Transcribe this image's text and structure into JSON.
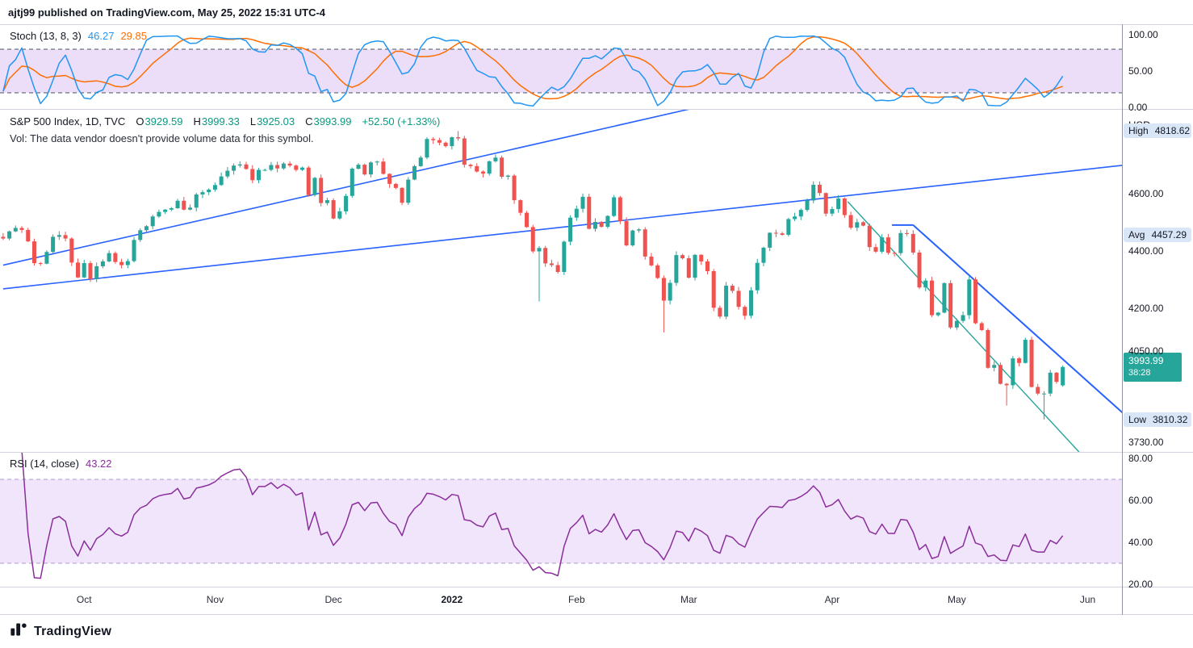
{
  "header": {
    "published_line": "ajtj99 published on TradingView.com, May 25, 2022 15:31 UTC-4"
  },
  "stoch_pane": {
    "title": "Stoch (13, 8, 3)",
    "k_value": "46.27",
    "d_value": "29.85",
    "k_color": "#2196f3",
    "d_color": "#ff6d00",
    "band": {
      "upper": 80,
      "lower": 20
    },
    "ticks": [
      {
        "value": 100,
        "label": "100.00"
      },
      {
        "value": 50,
        "label": "50.00"
      },
      {
        "value": 0,
        "label": "0.00"
      }
    ]
  },
  "main_pane": {
    "title": "S&P 500 Index, 1D, TVC",
    "ohlc": {
      "o_label": "O",
      "o": "3929.59",
      "h_label": "H",
      "h": "3999.33",
      "l_label": "L",
      "l": "3925.03",
      "c_label": "C",
      "c": "3993.99",
      "change": "+52.50 (+1.33%)",
      "color": "#089981"
    },
    "vol_note": "Vol: The data vendor doesn't provide volume data for this symbol.",
    "currency": "USD",
    "ticks": [
      {
        "price": 4600,
        "label": "4600.00"
      },
      {
        "price": 4400,
        "label": "4400.00"
      },
      {
        "price": 4200,
        "label": "4200.00"
      },
      {
        "price": 4050,
        "label": "4050.00"
      },
      {
        "price": 3730,
        "label": "3730.00"
      }
    ],
    "stat_badges": [
      {
        "name": "high",
        "label": "High",
        "value": "4818.62",
        "price": 4818.62
      },
      {
        "name": "avg",
        "label": "Avg",
        "value": "4457.29",
        "price": 4457.29
      },
      {
        "name": "low",
        "label": "Low",
        "value": "3810.32",
        "price": 3810.32
      }
    ],
    "price_badge": {
      "value": "3993.99",
      "countdown": "38:28",
      "price": 3993.99,
      "color": "#26a69a"
    }
  },
  "rsi_pane": {
    "title": "RSI (14, close)",
    "value": "43.22",
    "color": "#8a2e9c",
    "band": {
      "upper": 70,
      "lower": 30
    },
    "ticks": [
      {
        "value": 80,
        "label": "80.00"
      },
      {
        "value": 60,
        "label": "60.00"
      },
      {
        "value": 40,
        "label": "40.00"
      },
      {
        "value": 20,
        "label": "20.00"
      }
    ]
  },
  "footer": {
    "brand": "TradingView"
  },
  "chart_data": {
    "type": "candlestick",
    "title": "S&P 500 Index, 1D, TVC",
    "x_unit": "trading-day",
    "x_span": "Sep 2021 - May 25 2022",
    "ylim": [
      3697,
      4896
    ],
    "up_color": "#26a69a",
    "down_color": "#ef5350",
    "closes": [
      4443,
      4468,
      4480,
      4473,
      4433,
      4357,
      4355,
      4396,
      4449,
      4455,
      4443,
      4359,
      4307,
      4357,
      4301,
      4346,
      4363,
      4392,
      4361,
      4350,
      4364,
      4438,
      4472,
      4486,
      4520,
      4536,
      4544,
      4549,
      4575,
      4544,
      4551,
      4597,
      4605,
      4614,
      4630,
      4660,
      4680,
      4698,
      4702,
      4686,
      4647,
      4683,
      4683,
      4700,
      4688,
      4705,
      4698,
      4683,
      4691,
      4595,
      4655,
      4567,
      4577,
      4513,
      4538,
      4592,
      4687,
      4701,
      4667,
      4709,
      4712,
      4669,
      4634,
      4620,
      4568,
      4649,
      4696,
      4726,
      4791,
      4787,
      4778,
      4766,
      4797,
      4793,
      4701,
      4696,
      4677,
      4670,
      4713,
      4726,
      4659,
      4663,
      4577,
      4533,
      4483,
      4398,
      4410,
      4356,
      4350,
      4326,
      4432,
      4516,
      4547,
      4589,
      4477,
      4501,
      4484,
      4522,
      4587,
      4504,
      4419,
      4471,
      4475,
      4380,
      4349,
      4305,
      4226,
      4288,
      4385,
      4374,
      4306,
      4386,
      4363,
      4329,
      4201,
      4170,
      4278,
      4260,
      4204,
      4173,
      4262,
      4358,
      4411,
      4463,
      4461,
      4456,
      4511,
      4520,
      4543,
      4576,
      4631,
      4602,
      4530,
      4546,
      4583,
      4525,
      4481,
      4500,
      4488,
      4413,
      4397,
      4447,
      4393,
      4392,
      4462,
      4459,
      4394,
      4272,
      4296,
      4175,
      4184,
      4287,
      4132,
      4155,
      4175,
      4300,
      4147,
      4123,
      3991,
      4001,
      3935,
      3930,
      4024,
      4008,
      4089,
      3924,
      3901,
      3901,
      3974,
      3942,
      3994
    ],
    "wick_overrides": [
      {
        "i": 73,
        "high": 4818.62
      },
      {
        "i": 86,
        "low": 4223
      },
      {
        "i": 106,
        "low": 4115
      },
      {
        "i": 161,
        "low": 3859
      },
      {
        "i": 167,
        "low": 3810.32
      }
    ],
    "last_candle": {
      "open": 3929.59,
      "high": 3999.33,
      "low": 3925.03,
      "close": 3993.99
    },
    "trendlines": [
      {
        "x1": 0,
        "p1": 4350,
        "x2": 110,
        "p2": 4895,
        "color": "#2962ff",
        "w": 1.6
      },
      {
        "x1": 0,
        "p1": 4267,
        "x2": 180,
        "p2": 4700,
        "color": "#2962ff",
        "w": 1.6
      },
      {
        "x1": 142.6,
        "p1": 4490,
        "x2": 146,
        "p2": 4490,
        "color": "#2962ff",
        "w": 2
      },
      {
        "x1": 146,
        "p1": 4490,
        "x2": 180,
        "p2": 3826,
        "color": "#2962ff",
        "w": 2
      },
      {
        "x1": 135.5,
        "p1": 4572,
        "x2": 172.6,
        "p2": 3697,
        "color": "#26a69a",
        "w": 1.4
      }
    ],
    "x_ticks": [
      {
        "label": "Oct",
        "i": 13
      },
      {
        "label": "Nov",
        "i": 34
      },
      {
        "label": "Dec",
        "i": 53
      },
      {
        "label": "2022",
        "i": 72,
        "strong": true
      },
      {
        "label": "Feb",
        "i": 92
      },
      {
        "label": "Mar",
        "i": 110
      },
      {
        "label": "Apr",
        "i": 133
      },
      {
        "label": "May",
        "i": 153
      },
      {
        "label": "Jun",
        "i": 174
      }
    ],
    "indicators": {
      "stoch": {
        "params": [
          13,
          8,
          3
        ],
        "k": 46.27,
        "d": 29.85
      },
      "rsi": {
        "params": [
          14
        ],
        "value": 43.22
      }
    }
  }
}
